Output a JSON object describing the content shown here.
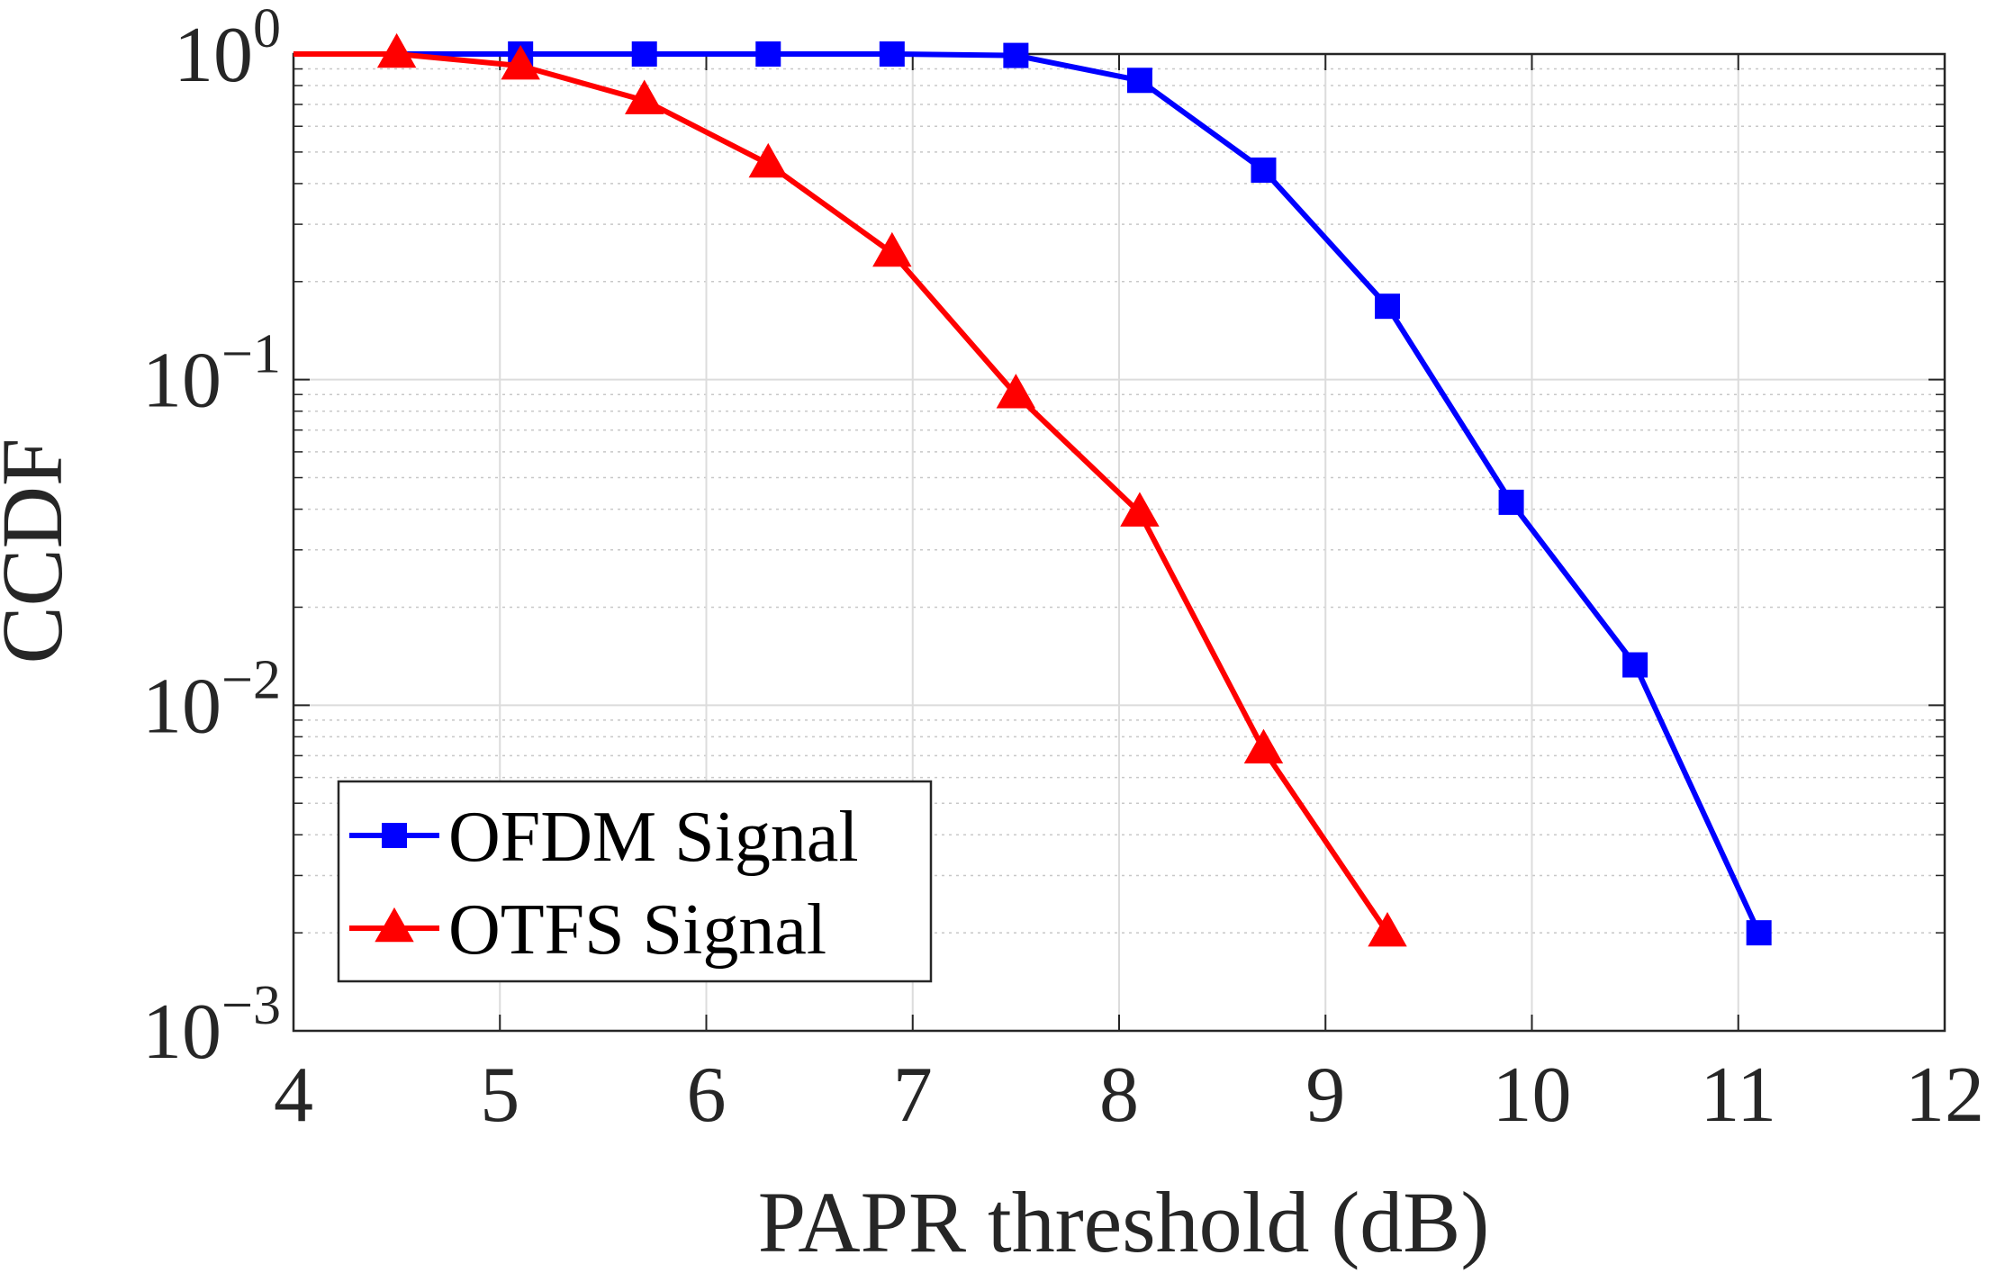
{
  "chart_data": {
    "type": "line",
    "xlabel": "PAPR threshold (dB)",
    "ylabel": "CCDF",
    "xlim": [
      4,
      12
    ],
    "ylim": [
      0.001,
      1
    ],
    "yscale": "log",
    "grid": true,
    "minor_grid": true,
    "legend_position": "bottom-left",
    "x_ticks": [
      "4",
      "5",
      "6",
      "7",
      "8",
      "9",
      "10",
      "11",
      "12"
    ],
    "y_ticks": [
      {
        "base": "10",
        "exp": "0"
      },
      {
        "base": "10",
        "exp": "−1"
      },
      {
        "base": "10",
        "exp": "−2"
      },
      {
        "base": "10",
        "exp": "−3"
      }
    ],
    "series": [
      {
        "name": "OFDM Signal",
        "color": "#0000ff",
        "marker": "square",
        "x": [
          4,
          4.5,
          5.1,
          5.7,
          6.3,
          6.9,
          7.5,
          8.1,
          8.7,
          9.3,
          9.9,
          10.5,
          11.1
        ],
        "y": [
          1.0,
          1.0,
          1.0,
          1.0,
          1.0,
          1.0,
          0.99,
          0.83,
          0.44,
          0.168,
          0.042,
          0.0133,
          0.002
        ],
        "marker_from_index": 2
      },
      {
        "name": "OTFS Signal",
        "color": "#ff0000",
        "marker": "triangle",
        "x": [
          4,
          4.5,
          5.1,
          5.7,
          6.3,
          6.9,
          7.5,
          8.1,
          8.7,
          9.3
        ],
        "y": [
          1.0,
          1.0,
          0.92,
          0.72,
          0.46,
          0.245,
          0.09,
          0.039,
          0.0073,
          0.002
        ],
        "marker_from_index": 1
      }
    ]
  }
}
